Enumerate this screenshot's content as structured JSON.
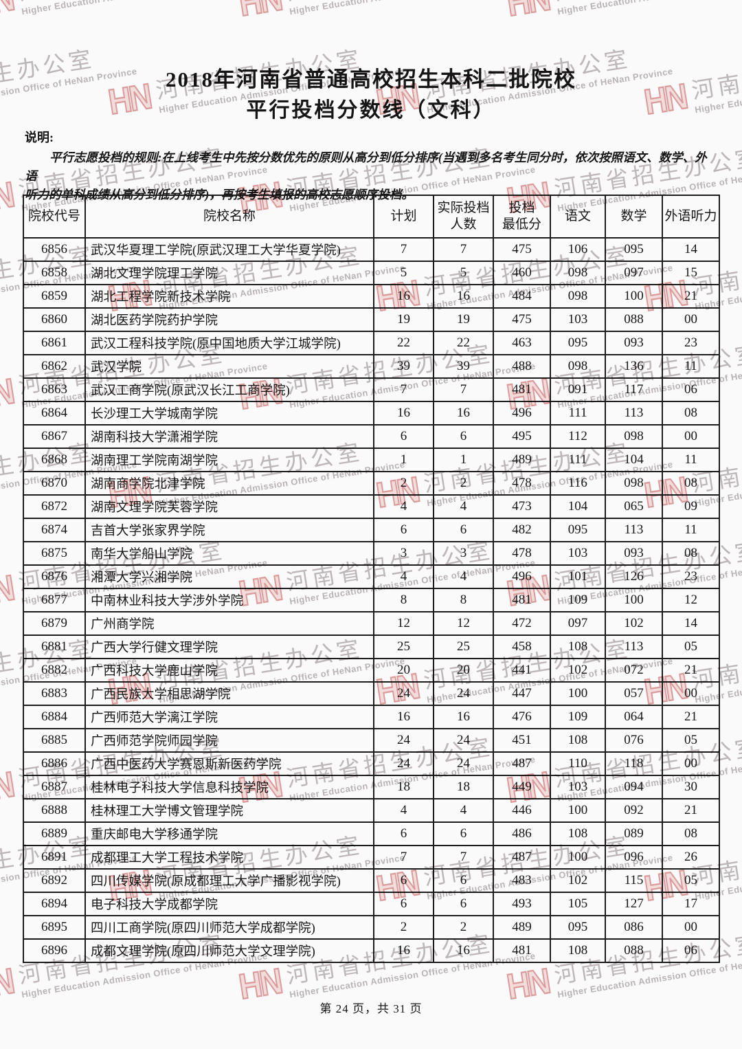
{
  "watermark": {
    "logo": "HN",
    "cn": "河南省招生办公室",
    "en": "Higher Education Admission Office of HeNan Province",
    "logo_color": "#d98e8e",
    "cn_color": "#b6afb1",
    "en_color": "#b1abad"
  },
  "title": {
    "line1": "2018年河南省普通高校招生本科二批院校",
    "line2": "平行投档分数线（文科）"
  },
  "notes": {
    "label": "说明:",
    "rule_line1": "平行志愿投档的规则:在上线考生中先按分数优先的原则从高分到低分排序(当遇到多名考生同分时，依次按照语文、数学、外语",
    "rule_line2": "听力的单科成绩从高分到低分排序)，再按考生填报的高校志愿顺序投档。"
  },
  "table": {
    "headers": [
      "院校代号",
      "院校名称",
      "计划",
      "实际投档\n人数",
      "投档\n最低分",
      "语文",
      "数学",
      "外语听力"
    ],
    "rows": [
      [
        "6856",
        "武汉华夏理工学院(原武汉理工大学华夏学院)",
        "7",
        "7",
        "475",
        "106",
        "095",
        "14"
      ],
      [
        "6858",
        "湖北文理学院理工学院",
        "5",
        "5",
        "460",
        "098",
        "097",
        "15"
      ],
      [
        "6859",
        "湖北工程学院新技术学院",
        "16",
        "16",
        "484",
        "098",
        "100",
        "21"
      ],
      [
        "6860",
        "湖北医药学院药护学院",
        "19",
        "19",
        "475",
        "103",
        "088",
        "00"
      ],
      [
        "6861",
        "武汉工程科技学院(原中国地质大学江城学院)",
        "22",
        "22",
        "463",
        "095",
        "093",
        "23"
      ],
      [
        "6862",
        "武汉学院",
        "39",
        "39",
        "488",
        "098",
        "136",
        "11"
      ],
      [
        "6863",
        "武汉工商学院(原武汉长江工商学院)",
        "7",
        "7",
        "481",
        "091",
        "117",
        "06"
      ],
      [
        "6864",
        "长沙理工大学城南学院",
        "16",
        "16",
        "496",
        "111",
        "113",
        "08"
      ],
      [
        "6867",
        "湖南科技大学潇湘学院",
        "6",
        "6",
        "495",
        "112",
        "098",
        "00"
      ],
      [
        "6868",
        "湖南理工学院南湖学院",
        "1",
        "1",
        "489",
        "111",
        "104",
        "11"
      ],
      [
        "6870",
        "湖南商学院北津学院",
        "2",
        "2",
        "478",
        "116",
        "098",
        "08"
      ],
      [
        "6872",
        "湖南文理学院芙蓉学院",
        "4",
        "4",
        "473",
        "104",
        "065",
        "09"
      ],
      [
        "6874",
        "吉首大学张家界学院",
        "6",
        "6",
        "482",
        "095",
        "113",
        "11"
      ],
      [
        "6875",
        "南华大学船山学院",
        "3",
        "3",
        "478",
        "103",
        "093",
        "08"
      ],
      [
        "6876",
        "湘潭大学兴湘学院",
        "4",
        "4",
        "496",
        "101",
        "126",
        "23"
      ],
      [
        "6877",
        "中南林业科技大学涉外学院",
        "8",
        "8",
        "481",
        "109",
        "100",
        "12"
      ],
      [
        "6879",
        "广州商学院",
        "12",
        "12",
        "472",
        "097",
        "102",
        "14"
      ],
      [
        "6881",
        "广西大学行健文理学院",
        "25",
        "25",
        "458",
        "108",
        "113",
        "05"
      ],
      [
        "6882",
        "广西科技大学鹿山学院",
        "20",
        "20",
        "441",
        "102",
        "072",
        "21"
      ],
      [
        "6883",
        "广西民族大学相思湖学院",
        "24",
        "24",
        "447",
        "100",
        "057",
        "00"
      ],
      [
        "6884",
        "广西师范大学漓江学院",
        "16",
        "16",
        "476",
        "109",
        "064",
        "21"
      ],
      [
        "6885",
        "广西师范学院师园学院",
        "24",
        "24",
        "451",
        "108",
        "076",
        "05"
      ],
      [
        "6886",
        "广西中医药大学赛恩斯新医药学院",
        "24",
        "24",
        "487",
        "110",
        "118",
        "00"
      ],
      [
        "6887",
        "桂林电子科技大学信息科技学院",
        "18",
        "18",
        "449",
        "103",
        "094",
        "30"
      ],
      [
        "6888",
        "桂林理工大学博文管理学院",
        "4",
        "4",
        "446",
        "100",
        "092",
        "21"
      ],
      [
        "6889",
        "重庆邮电大学移通学院",
        "6",
        "6",
        "486",
        "108",
        "089",
        "08"
      ],
      [
        "6891",
        "成都理工大学工程技术学院",
        "7",
        "7",
        "487",
        "100",
        "096",
        "26"
      ],
      [
        "6892",
        "四川传媒学院(原成都理工大学广播影视学院)",
        "6",
        "6",
        "483",
        "102",
        "115",
        "05"
      ],
      [
        "6894",
        "电子科技大学成都学院",
        "6",
        "6",
        "493",
        "105",
        "127",
        "17"
      ],
      [
        "6895",
        "四川工商学院(原四川师范大学成都学院)",
        "2",
        "2",
        "489",
        "095",
        "086",
        "00"
      ],
      [
        "6896",
        "成都文理学院(原四川师范大学文理学院)",
        "16",
        "16",
        "481",
        "108",
        "088",
        "06"
      ]
    ]
  },
  "footer": {
    "page_text": "第 24 页，共 31 页"
  }
}
